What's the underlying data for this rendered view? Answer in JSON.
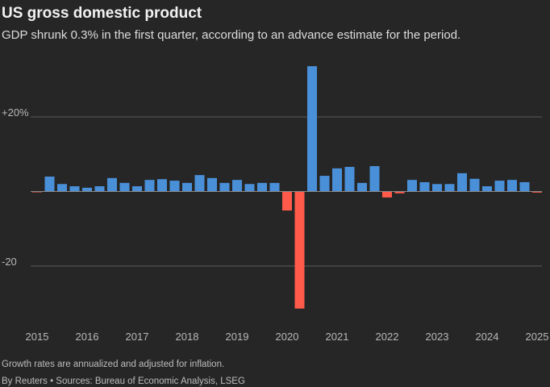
{
  "chart_data": {
    "type": "bar",
    "title": "US gross domestic product",
    "subtitle": "GDP shrunk 0.3% in the first quarter, according to an advance estimate for the period.",
    "note": "Growth rates are annualized and adjusted for inflation.",
    "source": "By Reuters • Sources: Bureau of Economic Analysis, LSEG",
    "categories": [
      "2015",
      null,
      null,
      null,
      "2016",
      null,
      null,
      null,
      "2017",
      null,
      null,
      null,
      "2018",
      null,
      null,
      null,
      "2019",
      null,
      null,
      null,
      "2020",
      null,
      null,
      null,
      "2021",
      null,
      null,
      null,
      "2022",
      null,
      null,
      null,
      "2023",
      null,
      null,
      null,
      "2024",
      null,
      null,
      null,
      "2025"
    ],
    "values": [
      -0.2,
      4.0,
      2.0,
      1.4,
      1.0,
      1.4,
      3.6,
      2.3,
      1.4,
      3.1,
      3.3,
      2.9,
      2.3,
      4.4,
      3.6,
      2.3,
      3.1,
      2.0,
      2.3,
      2.3,
      -5.1,
      -31.4,
      33.6,
      4.2,
      6.2,
      6.6,
      2.3,
      6.8,
      -1.6,
      -0.5,
      3.1,
      2.5,
      2.0,
      2.0,
      4.9,
      3.4,
      1.4,
      2.9,
      3.1,
      2.5,
      -0.3
    ],
    "colors": {
      "positive": "#4a90d9",
      "negative": "#ff5a4a"
    },
    "ylim": [
      -34,
      34
    ],
    "yticks": [
      {
        "value": 20,
        "label": "+20%"
      },
      {
        "value": -20,
        "label": "-20"
      }
    ],
    "grid": true
  }
}
